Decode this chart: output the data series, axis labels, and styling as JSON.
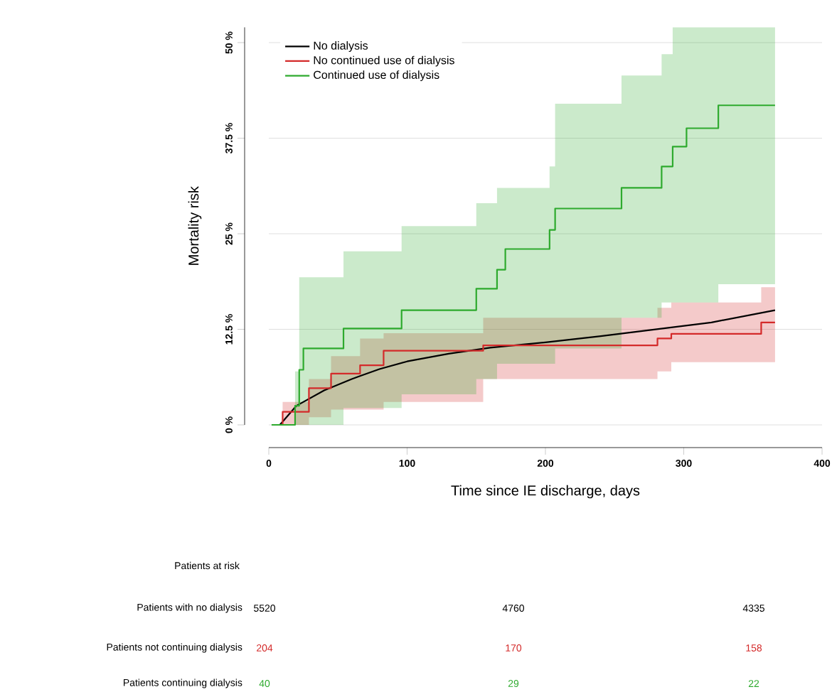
{
  "chart_data": {
    "type": "step",
    "xlabel": "Time since IE discharge, days",
    "ylabel": "Mortality risk",
    "xlim": [
      0,
      400
    ],
    "xticks": [
      0,
      100,
      200,
      300,
      400
    ],
    "ylim": [
      0,
      52
    ],
    "yticks": [
      {
        "value": 0,
        "label": "0 %"
      },
      {
        "value": 12.5,
        "label": "12.5 %"
      },
      {
        "value": 25,
        "label": "25 %"
      },
      {
        "value": 37.5,
        "label": "37.5 %"
      },
      {
        "value": 50,
        "label": "50 %"
      }
    ],
    "grid": "y",
    "legend": "top left",
    "line_style": "solid",
    "marker": "none",
    "series": [
      {
        "name": "No dialysis",
        "type": "line",
        "color": "#000000",
        "x": [
          8,
          20,
          40,
          60,
          80,
          100,
          130,
          160,
          200,
          240,
          280,
          320,
          366
        ],
        "values": [
          0,
          2.5,
          4.5,
          6,
          7.3,
          8.3,
          9.3,
          10.1,
          10.8,
          11.6,
          12.5,
          13.4,
          15
        ]
      },
      {
        "name": "No continued use of dialysis",
        "color": "#d42a2a",
        "x": [
          8,
          10,
          29,
          45,
          66,
          83,
          155,
          281,
          291,
          356,
          366
        ],
        "values": [
          0,
          1.7,
          4.8,
          6.7,
          7.8,
          9.7,
          10.4,
          11.3,
          11.9,
          13.4,
          13.4
        ],
        "lower": [
          0,
          0,
          1,
          2,
          2,
          3,
          6,
          7,
          8.2,
          8.2,
          8.2
        ],
        "upper": [
          0,
          3,
          6,
          9,
          11.3,
          12,
          14,
          15.3,
          16,
          18,
          18
        ]
      },
      {
        "name": "Continued use of dialysis",
        "color": "#2eaa2e",
        "x": [
          2,
          19,
          22,
          25,
          54,
          96,
          150,
          165,
          171,
          203,
          207,
          255,
          284,
          292,
          302,
          325,
          366
        ],
        "values": [
          0,
          2.5,
          7.2,
          10,
          12.6,
          15,
          17.8,
          20.3,
          23,
          25.5,
          28.3,
          31,
          33.8,
          36.4,
          38.8,
          41.8,
          41.8
        ],
        "lower": [
          0,
          0,
          0,
          0,
          2.2,
          4,
          6,
          8,
          8,
          8,
          10,
          14,
          16,
          16,
          16,
          18.4,
          18.4
        ],
        "upper": [
          0,
          7,
          19.3,
          19.3,
          22.7,
          26,
          29,
          31,
          31,
          33.8,
          42,
          45.7,
          48.5,
          52,
          52,
          52,
          52
        ]
      }
    ],
    "annotations": [
      "Patients at risk",
      "Patients with no dialysis",
      "5520",
      "4760",
      "4335",
      "Patients not continuing dialysis",
      "204",
      "170",
      "158",
      "Patients continuing dialysis",
      "40",
      "29",
      "22"
    ]
  }
}
